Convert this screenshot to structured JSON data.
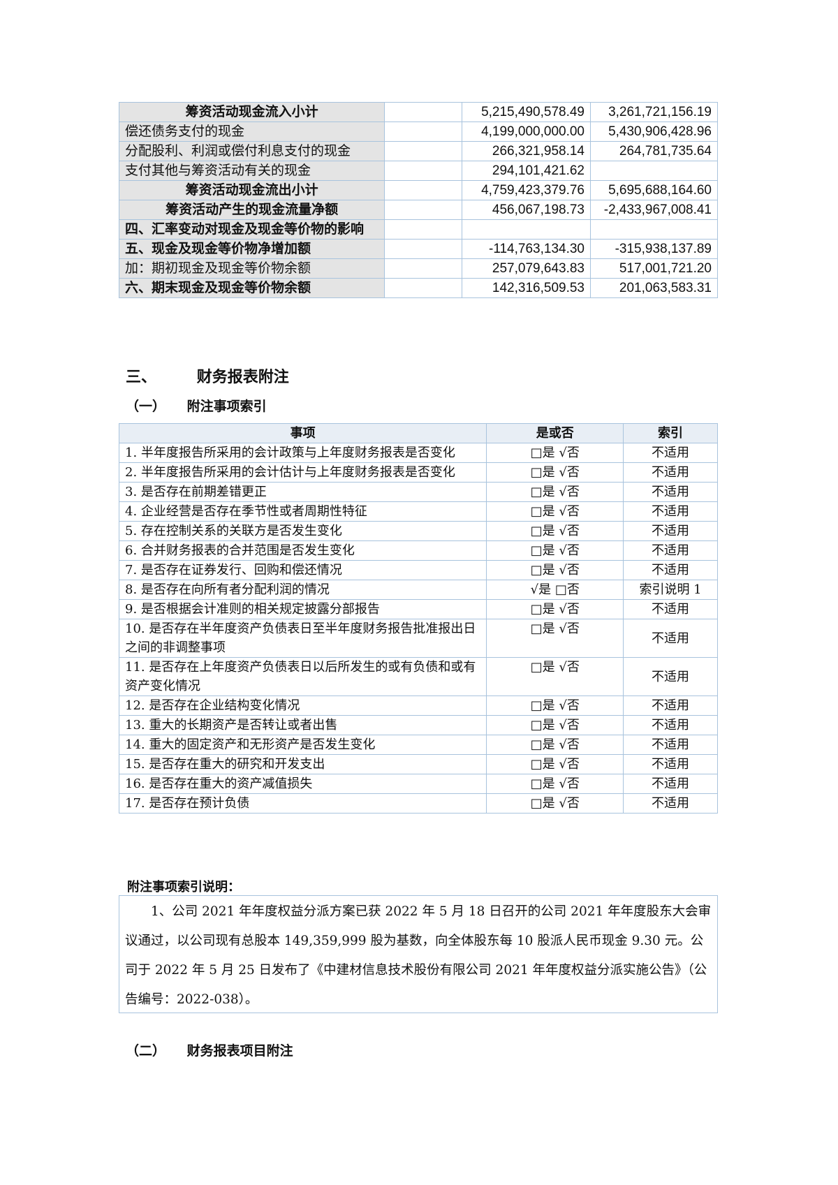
{
  "cashflow_table": {
    "rows": [
      {
        "label": "筹资活动现金流入小计",
        "style": "sub",
        "current": "5,215,490,578.49",
        "prior": "3,261,721,156.19"
      },
      {
        "label": "偿还债务支付的现金",
        "style": "",
        "current": "4,199,000,000.00",
        "prior": "5,430,906,428.96"
      },
      {
        "label": "分配股利、利润或偿付利息支付的现金",
        "style": "",
        "current": "266,321,958.14",
        "prior": "264,781,735.64"
      },
      {
        "label": "支付其他与筹资活动有关的现金",
        "style": "",
        "current": "294,101,421.62",
        "prior": ""
      },
      {
        "label": "筹资活动现金流出小计",
        "style": "sub",
        "current": "4,759,423,379.76",
        "prior": "5,695,688,164.60"
      },
      {
        "label": "筹资活动产生的现金流量净额",
        "style": "sub",
        "current": "456,067,198.73",
        "prior": "-2,433,967,008.41"
      },
      {
        "label": "四、汇率变动对现金及现金等价物的影响",
        "style": "bold",
        "current": "",
        "prior": ""
      },
      {
        "label": "五、现金及现金等价物净增加额",
        "style": "bold",
        "current": "-114,763,134.30",
        "prior": "-315,938,137.89"
      },
      {
        "label": "加：期初现金及现金等价物余额",
        "style": "",
        "current": "257,079,643.83",
        "prior": "517,001,721.20"
      },
      {
        "label": "六、期末现金及现金等价物余额",
        "style": "bold",
        "current": "142,316,509.53",
        "prior": "201,063,583.31"
      }
    ]
  },
  "section3_title": {
    "num": "三、",
    "text": "财务报表附注"
  },
  "sub1_title": {
    "num": "（一）",
    "text": "附注事项索引"
  },
  "index_table": {
    "headers": [
      "事项",
      "是或否",
      "索引"
    ],
    "rows": [
      {
        "item": "1. 半年度报告所采用的会计政策与上年度财务报表是否变化",
        "yn": "□是 √否",
        "ref": "不适用"
      },
      {
        "item": "2. 半年度报告所采用的会计估计与上年度财务报表是否变化",
        "yn": "□是 √否",
        "ref": "不适用"
      },
      {
        "item": "3. 是否存在前期差错更正",
        "yn": "□是 √否",
        "ref": "不适用"
      },
      {
        "item": "4. 企业经营是否存在季节性或者周期性特征",
        "yn": "□是 √否",
        "ref": "不适用"
      },
      {
        "item": "5. 存在控制关系的关联方是否发生变化",
        "yn": "□是 √否",
        "ref": "不适用"
      },
      {
        "item": "6. 合并财务报表的合并范围是否发生变化",
        "yn": "□是 √否",
        "ref": "不适用"
      },
      {
        "item": "7. 是否存在证券发行、回购和偿还情况",
        "yn": "□是 √否",
        "ref": "不适用"
      },
      {
        "item": "8. 是否存在向所有者分配利润的情况",
        "yn": "√是 □否",
        "ref": "索引说明 1"
      },
      {
        "item": "9. 是否根据会计准则的相关规定披露分部报告",
        "yn": "□是 √否",
        "ref": "不适用"
      },
      {
        "item": "10. 是否存在半年度资产负债表日至半年度财务报告批准报出日之间的非调整事项",
        "yn": "□是 √否",
        "ref": "不适用"
      },
      {
        "item": "11. 是否存在上年度资产负债表日以后所发生的或有负债和或有资产变化情况",
        "yn": "□是 √否",
        "ref": "不适用"
      },
      {
        "item": "12. 是否存在企业结构变化情况",
        "yn": "□是 √否",
        "ref": "不适用"
      },
      {
        "item": "13. 重大的长期资产是否转让或者出售",
        "yn": "□是 √否",
        "ref": "不适用"
      },
      {
        "item": "14. 重大的固定资产和无形资产是否发生变化",
        "yn": "□是 √否",
        "ref": "不适用"
      },
      {
        "item": "15. 是否存在重大的研究和开发支出",
        "yn": "□是 √否",
        "ref": "不适用"
      },
      {
        "item": "16. 是否存在重大的资产减值损失",
        "yn": "□是 √否",
        "ref": "不适用"
      },
      {
        "item": "17. 是否存在预计负债",
        "yn": "□是 √否",
        "ref": "不适用"
      }
    ]
  },
  "notes_heading": "附注事项索引说明：",
  "notes_text": "1、公司 2021 年年度权益分派方案已获 2022 年 5 月 18 日召开的公司 2021 年年度股东大会审议通过，以公司现有总股本 149,359,999 股为基数，向全体股东每 10 股派人民币现金 9.30 元。公司于 2022 年 5 月 25 日发布了《中建材信息技术股份有限公司 2021 年年度权益分派实施公告》（公告编号：2022-038）。",
  "sub2_title": {
    "num": "（二）",
    "text": "财务报表项目附注"
  }
}
